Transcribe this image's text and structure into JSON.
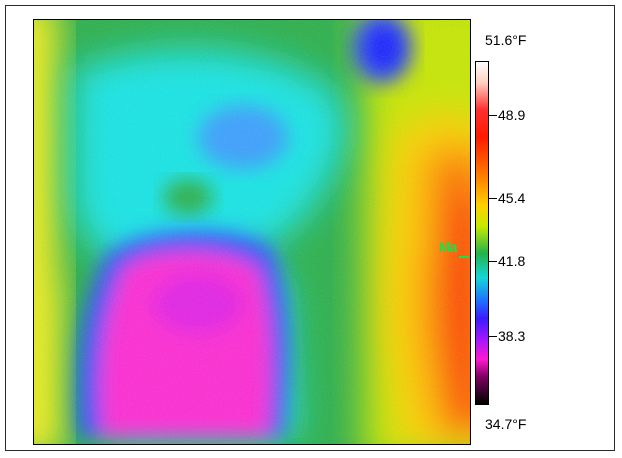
{
  "scale": {
    "max_label": "51.6°F",
    "min_label": "34.7°F",
    "ticks": [
      "48.9",
      "45.4",
      "41.8",
      "38.3"
    ]
  },
  "marker": {
    "label": "Ma"
  },
  "palette": {
    "magenta": "#ff19d0",
    "blue": "#2b30ff",
    "cyan": "#15e6e6",
    "green": "#29b84a",
    "yellow": "#f3f21b",
    "orange": "#ff7a00",
    "red": "#ff2b00"
  }
}
